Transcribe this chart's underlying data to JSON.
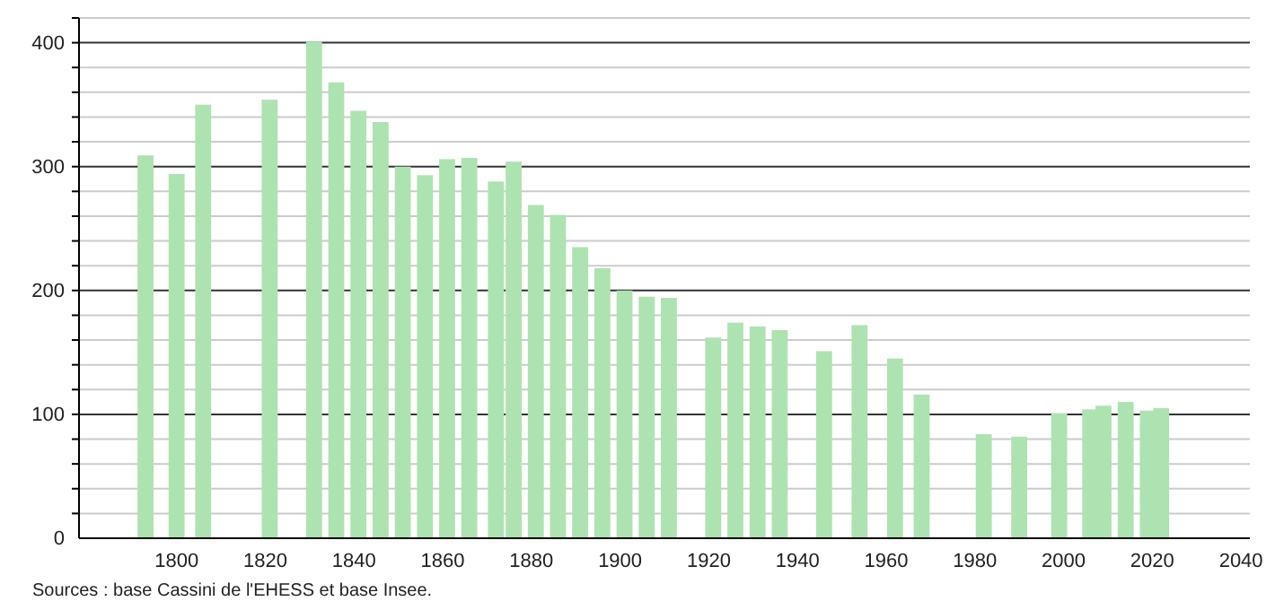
{
  "chart_data": {
    "type": "bar",
    "color": "#ade3b0",
    "x": [
      1793,
      1800,
      1806,
      1821,
      1831,
      1836,
      1841,
      1846,
      1851,
      1856,
      1861,
      1866,
      1872,
      1876,
      1881,
      1886,
      1891,
      1896,
      1901,
      1906,
      1911,
      1921,
      1926,
      1931,
      1936,
      1946,
      1954,
      1962,
      1968,
      1982,
      1990,
      1999,
      2006,
      2009,
      2014,
      2019,
      2022
    ],
    "values": [
      309,
      294,
      350,
      354,
      401,
      368,
      345,
      336,
      300,
      293,
      306,
      307,
      288,
      304,
      269,
      261,
      235,
      218,
      200,
      195,
      194,
      162,
      174,
      171,
      168,
      151,
      172,
      145,
      116,
      84,
      82,
      101,
      104,
      107,
      110,
      103,
      105
    ],
    "xlim": [
      1778,
      2042
    ],
    "xticks": [
      1800,
      1820,
      1840,
      1860,
      1880,
      1900,
      1920,
      1940,
      1960,
      1980,
      2000,
      2020,
      2040
    ],
    "ylim": [
      0,
      420
    ],
    "yticks": [
      0,
      {
        "value": 20,
        "label": null
      },
      {
        "value": 40,
        "label": null
      },
      {
        "value": 60,
        "label": null
      },
      {
        "value": 80,
        "label": null
      },
      100,
      {
        "value": 120,
        "label": null
      },
      {
        "value": 140,
        "label": null
      },
      {
        "value": 160,
        "label": null
      },
      {
        "value": 180,
        "label": null
      },
      200,
      {
        "value": 220,
        "label": null
      },
      {
        "value": 240,
        "label": null
      },
      {
        "value": 260,
        "label": null
      },
      {
        "value": 280,
        "label": null
      },
      300,
      {
        "value": 320,
        "label": null
      },
      {
        "value": 340,
        "label": null
      },
      {
        "value": 360,
        "label": null
      },
      {
        "value": 380,
        "label": null
      },
      400,
      {
        "value": 420,
        "label": null
      }
    ],
    "grid": "y",
    "annotations": [
      "Sources : base Cassini de l'EHESS et base Insee."
    ]
  }
}
